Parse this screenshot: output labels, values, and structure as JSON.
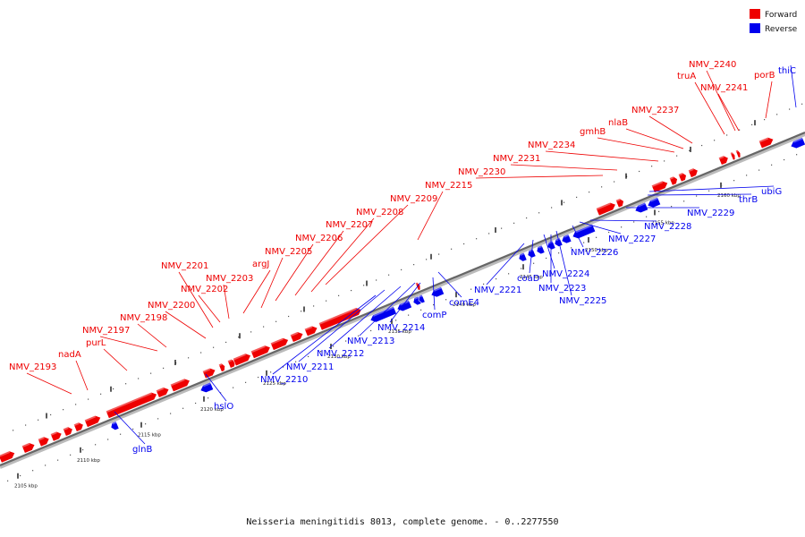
{
  "legend": [
    {
      "label": "Forward",
      "color": "#ee0000"
    },
    {
      "label": "Reverse",
      "color": "#0000ee"
    }
  ],
  "caption": "Neisseria meningitidis 8013, complete genome. - 0..2277550",
  "ticks": [
    "2105 kbp",
    "2110 kbp",
    "2115 kbp",
    "2120 kbp",
    "2125 kbp",
    "2130 kbp",
    "2135 kbp",
    "2140 kbp",
    "2145 kbp",
    "2150 kbp",
    "2155 kbp",
    "2160 kbp"
  ],
  "forward_labels": [
    "NMV_2193",
    "nadA",
    "purL",
    "NMV_2197",
    "NMV_2198",
    "NMV_2200",
    "NMV_2201",
    "NMV_2202",
    "NMV_2203",
    "argJ",
    "NMV_2205",
    "NMV_2206",
    "NMV_2207",
    "NMV_2208",
    "NMV_2209",
    "NMV_2215",
    "NMV_2230",
    "NMV_2231",
    "NMV_2234",
    "gmhB",
    "nlaB",
    "NMV_2237",
    "truA",
    "NMV_2240",
    "NMV_2241",
    "porB"
  ],
  "reverse_labels": [
    "glnB",
    "hslO",
    "NMV_2210",
    "NMV_2211",
    "NMV_2212",
    "NMV_2213",
    "NMV_2214",
    "comP",
    "comE4",
    "NMV_2221",
    "coaD",
    "NMV_2224",
    "NMV_2223",
    "NMV_2225",
    "NMV_2226",
    "NMV_2227",
    "NMV_2228",
    "NMV_2229",
    "thrB",
    "ubiG",
    "thiC"
  ]
}
